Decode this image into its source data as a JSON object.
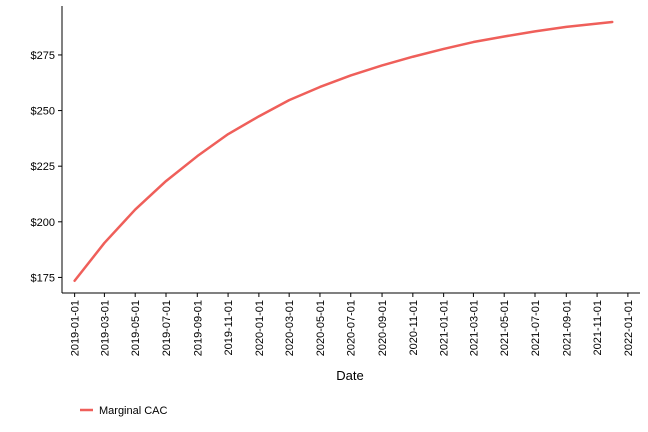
{
  "chart_data": {
    "type": "line",
    "title": "",
    "xlabel": "Date",
    "ylabel": "",
    "x_tick_labels": [
      "2019-01-01",
      "2019-03-01",
      "2019-05-01",
      "2019-07-01",
      "2019-09-01",
      "2019-11-01",
      "2020-01-01",
      "2020-03-01",
      "2020-05-01",
      "2020-07-01",
      "2020-09-01",
      "2020-11-01",
      "2021-01-01",
      "2021-03-01",
      "2021-05-01",
      "2021-07-01",
      "2021-09-01",
      "2021-11-01",
      "2022-01-01"
    ],
    "y_ticks": [
      175,
      200,
      225,
      250,
      275
    ],
    "y_tick_labels": [
      "$175",
      "$200",
      "$225",
      "$250",
      "$275"
    ],
    "ylim": [
      168,
      297
    ],
    "xlim": [
      "2018-12-07",
      "2022-01-25"
    ],
    "legend_position": "bottom-left",
    "grid": false,
    "series": [
      {
        "name": "Marginal CAC",
        "color": "#EF5F5A",
        "x": [
          "2019-01-01",
          "2019-03-01",
          "2019-05-01",
          "2019-07-01",
          "2019-09-01",
          "2019-11-01",
          "2020-01-01",
          "2020-03-01",
          "2020-05-01",
          "2020-07-01",
          "2020-09-01",
          "2020-11-01",
          "2021-01-01",
          "2021-03-01",
          "2021-05-01",
          "2021-07-01",
          "2021-09-01",
          "2021-12-01"
        ],
        "y": [
          173.5,
          190.5,
          205.5,
          218.3,
          229.5,
          239.4,
          247.4,
          254.7,
          260.6,
          265.8,
          270.3,
          274.2,
          277.7,
          280.8,
          283.3,
          285.6,
          287.6,
          289.8
        ]
      }
    ]
  }
}
